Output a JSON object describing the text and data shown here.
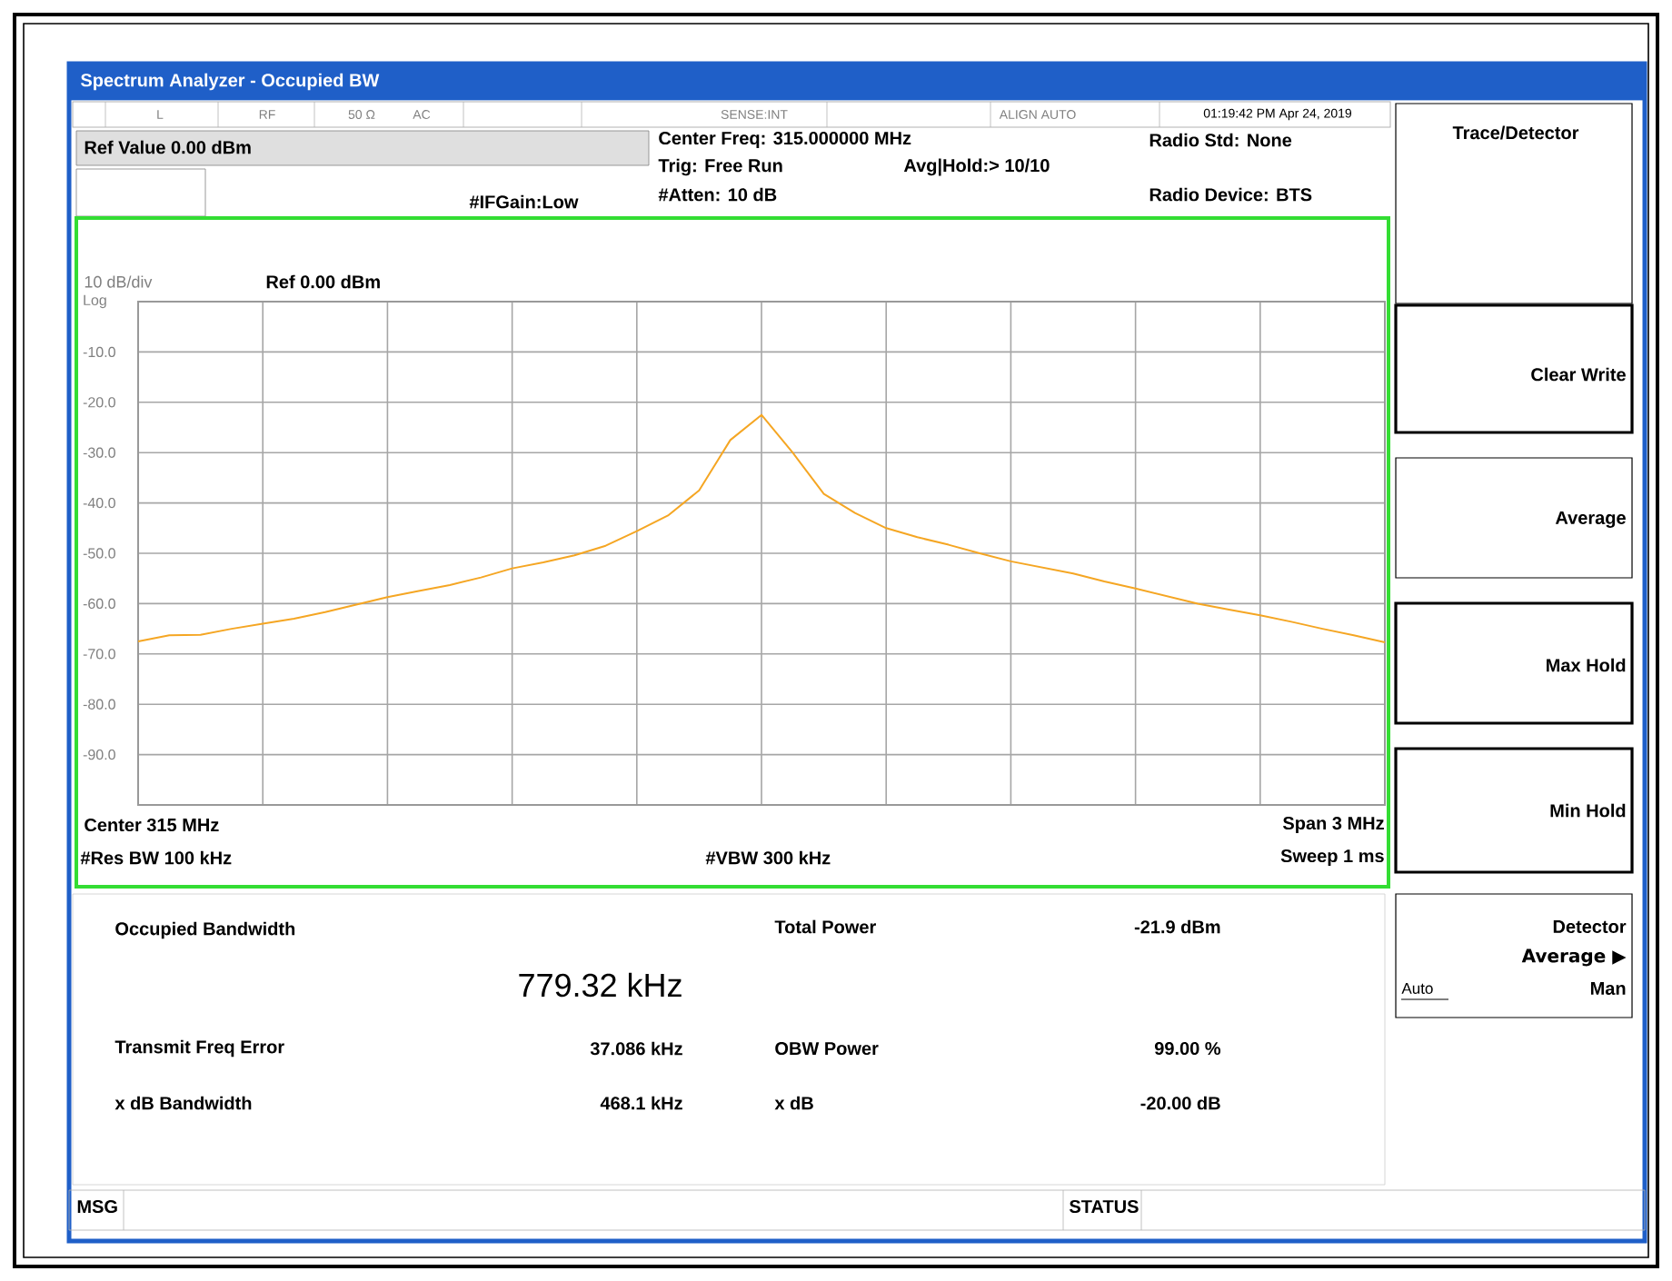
{
  "chart_data": {
    "type": "line",
    "title": "Spectrum Analyzer - Occupied BW",
    "annotations": [
      "L",
      "RF",
      "50 Ω",
      "AC",
      "SENSE:INT",
      "ALIGN AUTO",
      "01:19:42 PM Apr 24, 2019",
      "Ref Value  0.00 dBm",
      "Center Freq: 315.000000 MHz",
      "Trig: Free Run",
      "Avg|Hold:> 10/10",
      "#Atten: 10 dB",
      "#IFGain:Low",
      "Radio Std: None",
      "Radio Device: BTS",
      "10 dB/div",
      "Ref 0.00 dBm",
      "Center  315 MHz",
      "#Res BW  100 kHz",
      "#VBW  300 kHz",
      "Span 3 MHz",
      "Sweep  1 ms",
      "Occupied Bandwidth",
      "779.32 kHz",
      "Total Power",
      "-21.9 dBm",
      "Transmit Freq Error",
      "37.086 kHz",
      "OBW Power",
      "99.00 %",
      "x dB Bandwidth",
      "468.1 kHz",
      "x dB",
      "-20.00 dB",
      "Trace/Detector",
      "Clear Write",
      "Average",
      "Max Hold",
      "Min Hold",
      "Detector",
      "Average ▶",
      "Auto",
      "Man",
      "MSG",
      "STATUS"
    ],
    "categories": [
      null,
      null,
      null,
      null,
      null,
      null,
      null,
      null,
      null,
      null,
      null,
      null,
      null,
      null,
      null,
      null,
      null,
      null,
      null,
      null,
      null,
      null,
      null,
      null,
      null,
      null,
      null,
      null,
      null,
      null,
      null,
      null,
      null,
      null,
      null,
      null,
      null,
      null,
      null,
      null,
      null
    ],
    "values": [
      -67.5,
      -66.3,
      -66.2,
      -65,
      -64,
      -63,
      -61.7,
      -60.2,
      -58.7,
      -57.5,
      -56.3,
      -54.8,
      -53,
      -51.8,
      -50.4,
      -48.5,
      -45.6,
      -42.5,
      -37.5,
      -27.5,
      -22.5,
      -30,
      -38.2,
      -42,
      -45,
      -46.8,
      -48.3,
      -50,
      -51.6,
      -52.8,
      -54,
      -55.6,
      -57,
      -58.5,
      -60,
      -61.2,
      -62.3,
      -63.6,
      -65,
      -66.3,
      -67.7
    ],
    "color": "#f5a623",
    "ylim": [
      -100,
      0
    ],
    "yticks": [
      {
        "value": 0,
        "label": "Log"
      },
      {
        "value": -10,
        "label": "-10.0"
      },
      {
        "value": -20,
        "label": "-20.0"
      },
      {
        "value": -30,
        "label": "-30.0"
      },
      {
        "value": -40,
        "label": "-40.0"
      },
      {
        "value": -50,
        "label": "-50.0"
      },
      {
        "value": -60,
        "label": "-60.0"
      },
      {
        "value": -70,
        "label": "-70.0"
      },
      {
        "value": -80,
        "label": "-80.0"
      },
      {
        "value": -90,
        "label": "-90.0"
      }
    ],
    "grid": true
  }
}
